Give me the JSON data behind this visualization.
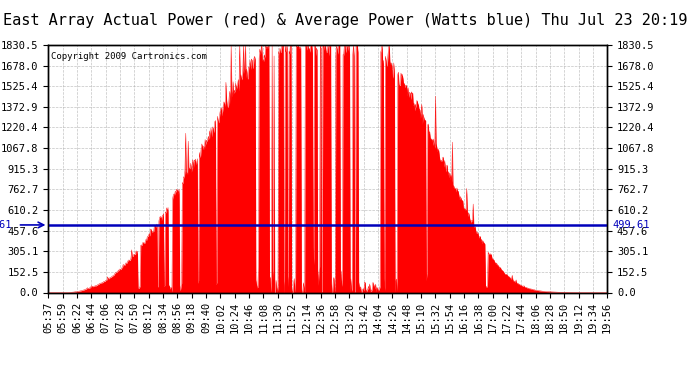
{
  "title": "East Array Actual Power (red) & Average Power (Watts blue) Thu Jul 23 20:19",
  "copyright": "Copyright 2009 Cartronics.com",
  "avg_power": 499.61,
  "y_max": 1830.5,
  "y_min": 0.0,
  "y_ticks": [
    0.0,
    152.5,
    305.1,
    457.6,
    610.2,
    762.7,
    915.3,
    1067.8,
    1220.4,
    1372.9,
    1525.4,
    1678.0,
    1830.5
  ],
  "x_labels": [
    "05:37",
    "05:59",
    "06:22",
    "06:44",
    "07:06",
    "07:28",
    "07:50",
    "08:12",
    "08:34",
    "08:56",
    "09:18",
    "09:40",
    "10:02",
    "10:24",
    "10:46",
    "11:08",
    "11:30",
    "11:52",
    "12:14",
    "12:36",
    "12:58",
    "13:20",
    "13:42",
    "14:04",
    "14:26",
    "14:48",
    "15:10",
    "15:32",
    "15:54",
    "16:16",
    "16:38",
    "17:00",
    "17:22",
    "17:44",
    "18:06",
    "18:28",
    "18:50",
    "19:12",
    "19:34",
    "19:56"
  ],
  "bg_color": "#ffffff",
  "plot_bg_color": "#ffffff",
  "grid_color": "#aaaaaa",
  "line_color_avg": "#0000bb",
  "fill_color": "#ff0000",
  "title_fontsize": 11,
  "tick_fontsize": 7.5
}
